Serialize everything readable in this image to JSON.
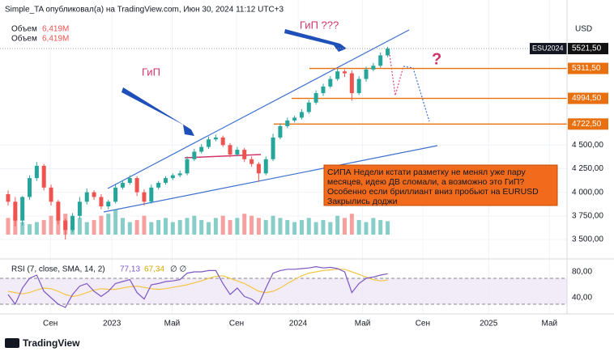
{
  "chart_data": {
    "type": "candlestick",
    "title": "Simple_TA опубликовал(а) на TradingView.com, Июн 30, 2024 11:12 UTC+3",
    "symbol": "ESU2024",
    "currency": "USD",
    "legend": [
      {
        "name": "Объем",
        "value_label": "6,419M"
      },
      {
        "name": "Объем",
        "value_label": "6,419M"
      }
    ],
    "up_color": "#26a69a",
    "down_color": "#ef5350",
    "open": [
      3980,
      3900,
      3700,
      3950,
      4150,
      4280,
      4050,
      3900,
      3700,
      3600,
      3750,
      3900,
      4000,
      3950,
      3850,
      3900,
      4050,
      4100,
      4150,
      4000,
      3900,
      4050,
      4100,
      4150,
      4180,
      4200,
      4350,
      4430,
      4480,
      4560,
      4580,
      4500,
      4400,
      4450,
      4350,
      4300,
      4200,
      4350,
      4580,
      4700,
      4760,
      4790,
      4850,
      4950,
      5050,
      5120,
      5200,
      5280,
      5260,
      5050,
      5200,
      5300,
      5340,
      5450
    ],
    "high": [
      4020,
      3950,
      3960,
      4180,
      4320,
      4300,
      4080,
      3920,
      3720,
      3780,
      3950,
      4040,
      4020,
      3980,
      3920,
      4080,
      4130,
      4180,
      4170,
      4030,
      4080,
      4120,
      4170,
      4200,
      4230,
      4380,
      4460,
      4510,
      4590,
      4610,
      4600,
      4520,
      4480,
      4470,
      4380,
      4320,
      4380,
      4620,
      4730,
      4790,
      4810,
      4880,
      4980,
      5080,
      5150,
      5230,
      5310,
      5300,
      5290,
      5230,
      5330,
      5370,
      5480,
      5540
    ],
    "low": [
      3860,
      3640,
      3650,
      3920,
      4120,
      4020,
      3860,
      3660,
      3500,
      3580,
      3720,
      3870,
      3920,
      3820,
      3820,
      3880,
      4030,
      4080,
      3960,
      3860,
      3880,
      4030,
      4080,
      4130,
      4160,
      4180,
      4330,
      4410,
      4460,
      4540,
      4480,
      4370,
      4380,
      4320,
      4270,
      4110,
      4180,
      4330,
      4560,
      4680,
      4740,
      4770,
      4830,
      4930,
      5020,
      5100,
      5180,
      5220,
      4970,
      5030,
      5170,
      5280,
      5320,
      5430
    ],
    "close": [
      3900,
      3700,
      3950,
      4150,
      4280,
      4050,
      3900,
      3700,
      3600,
      3750,
      3900,
      4000,
      3950,
      3850,
      3900,
      4050,
      4100,
      4150,
      4000,
      3900,
      4050,
      4100,
      4150,
      4180,
      4200,
      4350,
      4430,
      4480,
      4560,
      4580,
      4500,
      4400,
      4450,
      4350,
      4300,
      4200,
      4350,
      4580,
      4700,
      4760,
      4790,
      4850,
      4950,
      5050,
      5120,
      5200,
      5280,
      5260,
      5050,
      5200,
      5300,
      5340,
      5450,
      5521.5
    ],
    "volume": [
      8,
      9,
      6,
      5,
      6,
      7,
      9,
      8,
      10,
      7,
      8,
      6,
      7,
      9,
      10,
      12,
      8,
      6,
      7,
      9,
      6,
      7,
      8,
      6,
      7,
      8,
      9,
      7,
      6,
      8,
      9,
      7,
      8,
      10,
      9,
      8,
      7,
      9,
      8,
      7,
      6,
      7,
      8,
      6,
      7,
      6,
      9,
      8,
      10,
      7,
      6,
      8,
      7,
      6.419
    ],
    "volume_ylim": [
      0,
      120
    ],
    "xlim": [
      -1.131,
      78.05
    ],
    "xticks": [
      {
        "value": 5.9,
        "label": "Сен"
      },
      {
        "value": 14.5,
        "label": "2023"
      },
      {
        "value": 22.9,
        "label": "Май"
      },
      {
        "value": 31.9,
        "label": "Сен"
      },
      {
        "value": 40.5,
        "label": "2024"
      },
      {
        "value": 49.5,
        "label": "Май"
      },
      {
        "value": 57.9,
        "label": "Сен"
      },
      {
        "value": 67.1,
        "label": "2025"
      },
      {
        "value": 75.6,
        "label": "Май"
      }
    ],
    "ylim": [
      3380,
      6036
    ],
    "yticks": [
      {
        "value": 3500,
        "label": "3 500,00"
      },
      {
        "value": 3750,
        "label": "3 750,00"
      },
      {
        "value": 4000,
        "label": "4 000,00"
      },
      {
        "value": 4250,
        "label": "4 250,00"
      },
      {
        "value": 4500,
        "label": "4 500,00"
      }
    ],
    "levels": [
      {
        "value": 5521.5,
        "label": "5521,50",
        "color": "#111111"
      },
      {
        "value": 5311.5,
        "label": "5311,50",
        "color": "#e8700f"
      },
      {
        "value": 4994.5,
        "label": "4994,50",
        "color": "#e8700f"
      },
      {
        "value": 4722.5,
        "label": "4722,50",
        "color": "#e8700f"
      }
    ],
    "annotations": [
      "ГиП",
      "ГиП ???",
      "?"
    ],
    "note": [
      "СИПА Недели кстати разметку не менял уже пару",
      "месяцев, идею ДВ сломали, а возможно это ГиП?",
      "Особенно если бриллиант вниз пробьют на EURUSD",
      "Закрылись доджи"
    ],
    "rsi": {
      "title": "RSI (7, close, SMA, 14, 2)",
      "value_label": "77,13",
      "ma_value_label": "67,34",
      "extra": "∅ ∅",
      "values": [
        45,
        30,
        55,
        70,
        75,
        50,
        40,
        30,
        25,
        45,
        58,
        62,
        50,
        42,
        50,
        62,
        65,
        68,
        48,
        38,
        60,
        62,
        65,
        66,
        68,
        78,
        80,
        80,
        82,
        82,
        62,
        45,
        55,
        42,
        38,
        30,
        55,
        78,
        82,
        84,
        84,
        85,
        86,
        88,
        86,
        87,
        85,
        80,
        48,
        62,
        70,
        72,
        75,
        77.13
      ],
      "ma": [
        50,
        48,
        46,
        48,
        52,
        55,
        54,
        50,
        45,
        42,
        44,
        48,
        52,
        54,
        53,
        53,
        55,
        57,
        58,
        56,
        54,
        53,
        54,
        56,
        58,
        60,
        63,
        66,
        70,
        73,
        74,
        70,
        66,
        62,
        56,
        50,
        48,
        50,
        55,
        62,
        68,
        74,
        78,
        80,
        82,
        83,
        84,
        84,
        80,
        76,
        72,
        68,
        66,
        67.34
      ],
      "color": "#7e57c2",
      "ma_color": "#f5c542",
      "band": [
        30,
        70
      ],
      "ylim": [
        15,
        97.5
      ],
      "yticks": [
        {
          "value": 80,
          "label": "80,00"
        },
        {
          "value": 40,
          "label": "40,00"
        }
      ]
    },
    "footer": "TradingView"
  }
}
